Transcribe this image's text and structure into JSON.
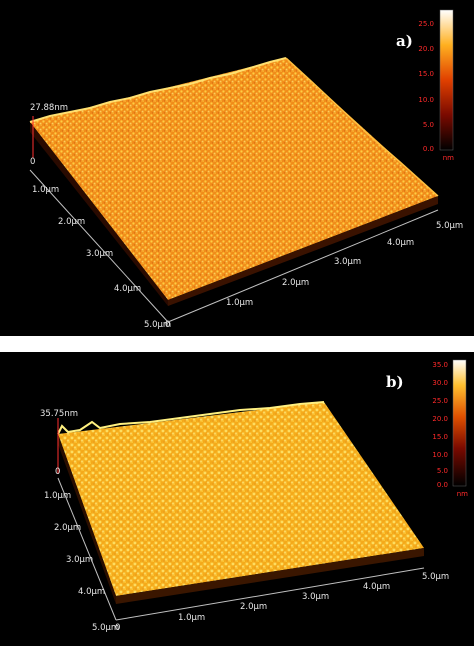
{
  "panels": [
    {
      "id": "a",
      "tag": "a)",
      "z_max_label": "27.88nm",
      "z_zero_label": "0",
      "y_ticks": [
        "1.0µm",
        "2.0µm",
        "3.0µm",
        "4.0µm",
        "5.0µm"
      ],
      "origin_label": "0",
      "x_ticks": [
        "1.0µm",
        "2.0µm",
        "3.0µm",
        "4.0µm",
        "5.0µm"
      ],
      "scale_ticks": [
        "25.0",
        "20.0",
        "15.0",
        "10.0",
        "5.0",
        "0.0"
      ],
      "scale_unit": "nm"
    },
    {
      "id": "b",
      "tag": "b)",
      "z_max_label": "35.75nm",
      "z_zero_label": "0",
      "y_ticks": [
        "1.0µm",
        "2.0µm",
        "3.0µm",
        "4.0µm",
        "5.0µm"
      ],
      "origin_label": "0",
      "x_ticks": [
        "1.0µm",
        "2.0µm",
        "3.0µm",
        "4.0µm",
        "5.0µm"
      ],
      "scale_ticks": [
        "35.0",
        "30.0",
        "25.0",
        "20.0",
        "15.0",
        "10.0",
        "5.0",
        "0.0"
      ],
      "scale_unit": "nm"
    }
  ],
  "colors": {
    "background": "#000000",
    "surface_a_dark": "#e0620a",
    "surface_a_light": "#ffd84a",
    "surface_b_dark": "#f0a010",
    "surface_b_light": "#ffe860",
    "scale_text": "#ff2a2a"
  }
}
